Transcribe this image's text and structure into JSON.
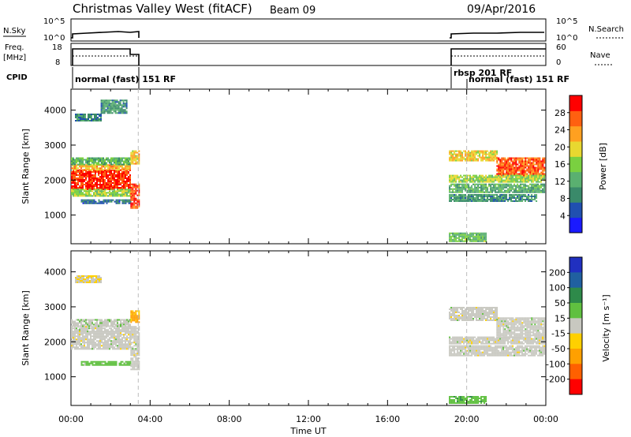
{
  "header": {
    "station": "Christmas Valley West (fitACF)",
    "beam": "Beam 09",
    "date": "09/Apr/2016"
  },
  "panels": {
    "nsky_label": "N.Sky",
    "nsky_ticks": [
      "10^5",
      "10^0"
    ],
    "nsearch_label": "N.Search",
    "nsearch_ticks": [
      "10^5",
      "10^0"
    ],
    "freq_label": "Freq.",
    "freq_unit": "[MHz]",
    "freq_ticks": [
      "18",
      "8"
    ],
    "nave_label": "Nave",
    "nave_ticks": [
      "60",
      "0"
    ],
    "cpid_label": "CPID",
    "cpid_segments": [
      "normal (fast)  151 RF",
      "rbsp 201 RF",
      "normal (fast)  151 RF"
    ]
  },
  "colors": {
    "power_scale": [
      "#1a1aff",
      "#2050b0",
      "#3a8a6a",
      "#5ab070",
      "#7ad040",
      "#e8d830",
      "#ffa020",
      "#ff6010",
      "#ff0000"
    ],
    "velocity_scale": [
      "#2030c0",
      "#2060a0",
      "#2e8a4a",
      "#60c040",
      "#c8c8c0",
      "#ffd000",
      "#ffa000",
      "#ff6000",
      "#ff0000"
    ],
    "ground_scatter": "#c8c8c0"
  },
  "chart_data": [
    {
      "type": "heatmap",
      "parameter": "Power",
      "xlabel": "Time UT",
      "ylabel": "Slant Range [km]",
      "x_ticks": [
        "00:00",
        "04:00",
        "08:00",
        "12:00",
        "16:00",
        "20:00",
        "00:00"
      ],
      "xlim_hours": [
        0,
        24
      ],
      "ylim_km": [
        180,
        4600
      ],
      "y_ticks": [
        1000,
        2000,
        3000,
        4000
      ],
      "colorbar": {
        "label": "Power [dB]",
        "ticks": [
          4,
          8,
          12,
          16,
          20,
          24,
          28
        ],
        "range": [
          0,
          32
        ]
      },
      "regions": [
        {
          "t": [
            0.0,
            3.0
          ],
          "r": [
            1750,
            2300
          ],
          "level": 29
        },
        {
          "t": [
            0.0,
            3.0
          ],
          "r": [
            2300,
            2450
          ],
          "level": 22
        },
        {
          "t": [
            0.0,
            3.0
          ],
          "r": [
            2450,
            2650
          ],
          "level": 13
        },
        {
          "t": [
            0.0,
            3.0
          ],
          "r": [
            1550,
            1750
          ],
          "level": 16
        },
        {
          "t": [
            0.5,
            3.0
          ],
          "r": [
            1350,
            1450
          ],
          "level": 7
        },
        {
          "t": [
            0.2,
            1.5
          ],
          "r": [
            3700,
            3900
          ],
          "level": 9
        },
        {
          "t": [
            1.5,
            2.8
          ],
          "r": [
            3900,
            4300
          ],
          "level": 10
        },
        {
          "t": [
            3.0,
            3.4
          ],
          "r": [
            1200,
            1900
          ],
          "level": 28
        },
        {
          "t": [
            3.0,
            3.4
          ],
          "r": [
            2450,
            2850
          ],
          "level": 21
        },
        {
          "t": [
            19.1,
            21.5
          ],
          "r": [
            2550,
            2850
          ],
          "level": 21
        },
        {
          "t": [
            21.5,
            23.9
          ],
          "r": [
            2150,
            2650
          ],
          "level": 27
        },
        {
          "t": [
            19.1,
            23.9
          ],
          "r": [
            1950,
            2150
          ],
          "level": 17
        },
        {
          "t": [
            19.1,
            23.9
          ],
          "r": [
            1650,
            1900
          ],
          "level": 12
        },
        {
          "t": [
            19.1,
            23.5
          ],
          "r": [
            1400,
            1600
          ],
          "level": 10
        },
        {
          "t": [
            19.1,
            21.0
          ],
          "r": [
            250,
            500
          ],
          "level": 14
        }
      ]
    },
    {
      "type": "heatmap",
      "parameter": "Velocity",
      "xlabel": "Time UT",
      "ylabel": "Slant Range [km]",
      "x_ticks": [
        "00:00",
        "04:00",
        "08:00",
        "12:00",
        "16:00",
        "20:00",
        "00:00"
      ],
      "xlim_hours": [
        0,
        24
      ],
      "ylim_km": [
        180,
        4600
      ],
      "y_ticks": [
        1000,
        2000,
        3000,
        4000
      ],
      "colorbar": {
        "label": "Velocity [m s⁻¹]",
        "ticks": [
          200,
          100,
          50,
          15,
          -15,
          -50,
          -100,
          -200
        ]
      },
      "regions": [
        {
          "t": [
            0.0,
            3.0
          ],
          "r": [
            1800,
            2450
          ],
          "level": 0
        },
        {
          "t": [
            0.0,
            3.0
          ],
          "r": [
            2450,
            2650
          ],
          "level": 5
        },
        {
          "t": [
            0.5,
            3.0
          ],
          "r": [
            1350,
            1450
          ],
          "level": 30
        },
        {
          "t": [
            0.2,
            1.5
          ],
          "r": [
            3700,
            3900
          ],
          "level": -10
        },
        {
          "t": [
            3.0,
            3.4
          ],
          "r": [
            1200,
            2450
          ],
          "level": 0
        },
        {
          "t": [
            3.0,
            3.4
          ],
          "r": [
            2550,
            2900
          ],
          "level": -60
        },
        {
          "t": [
            19.1,
            21.5
          ],
          "r": [
            2600,
            3000
          ],
          "level": 0
        },
        {
          "t": [
            21.5,
            23.9
          ],
          "r": [
            2150,
            2700
          ],
          "level": 0
        },
        {
          "t": [
            19.1,
            23.9
          ],
          "r": [
            1950,
            2150
          ],
          "level": 0
        },
        {
          "t": [
            19.1,
            23.9
          ],
          "r": [
            1600,
            1900
          ],
          "level": 0
        },
        {
          "t": [
            19.1,
            21.0
          ],
          "r": [
            250,
            450
          ],
          "level": 40
        }
      ]
    }
  ]
}
